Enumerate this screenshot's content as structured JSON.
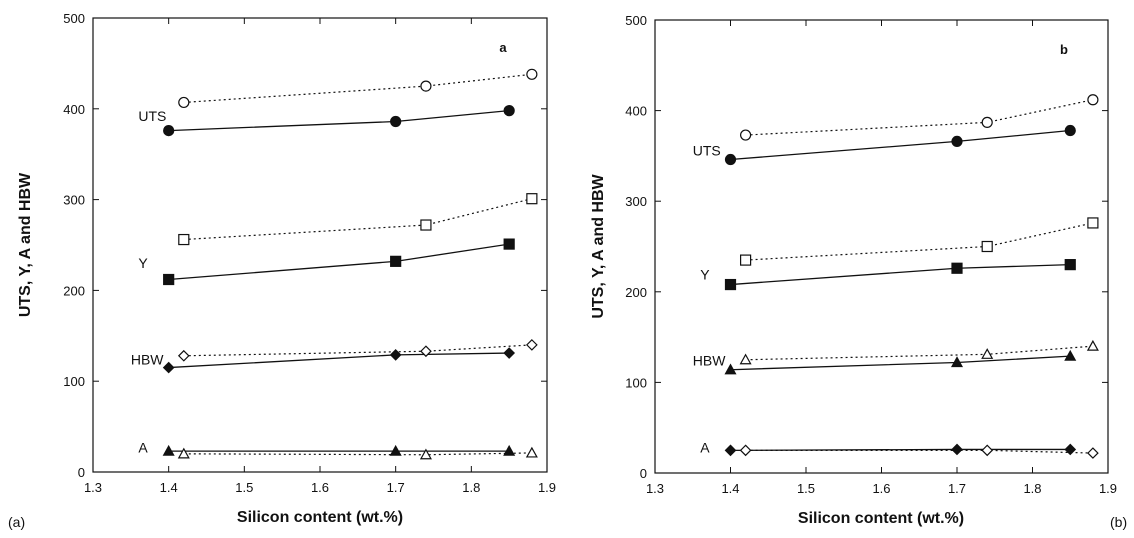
{
  "chart_data": [
    {
      "type": "line",
      "panel_label": "a",
      "caption": "(a)",
      "xlabel": "Silicon content (wt.%)",
      "ylabel": "UTS, Y, A and HBW",
      "xlim": [
        1.3,
        1.9
      ],
      "ylim": [
        0,
        500
      ],
      "xticks": [
        "1.3",
        "1.4",
        "1.5",
        "1.6",
        "1.7",
        "1.8",
        "1.9"
      ],
      "yticks": [
        "0",
        "100",
        "200",
        "300",
        "400",
        "500"
      ],
      "grid": false,
      "series": [
        {
          "group": "UTS",
          "style": "solid",
          "marker": "filled-circle",
          "x": [
            1.4,
            1.7,
            1.85
          ],
          "y": [
            376,
            386,
            398
          ]
        },
        {
          "group": "UTS",
          "style": "dotted",
          "marker": "open-circle",
          "x": [
            1.42,
            1.74,
            1.88
          ],
          "y": [
            407,
            425,
            438
          ]
        },
        {
          "group": "Y",
          "style": "solid",
          "marker": "filled-square",
          "x": [
            1.4,
            1.7,
            1.85
          ],
          "y": [
            212,
            232,
            251
          ]
        },
        {
          "group": "Y",
          "style": "dotted",
          "marker": "open-square",
          "x": [
            1.42,
            1.74,
            1.88
          ],
          "y": [
            256,
            272,
            301
          ]
        },
        {
          "group": "HBW",
          "style": "solid",
          "marker": "filled-diamond",
          "x": [
            1.4,
            1.7,
            1.85
          ],
          "y": [
            115,
            129,
            131
          ]
        },
        {
          "group": "HBW",
          "style": "dotted",
          "marker": "open-diamond",
          "x": [
            1.42,
            1.74,
            1.88
          ],
          "y": [
            128,
            133,
            140
          ]
        },
        {
          "group": "A",
          "style": "solid",
          "marker": "filled-triangle",
          "x": [
            1.4,
            1.7,
            1.85
          ],
          "y": [
            23,
            23,
            23
          ]
        },
        {
          "group": "A",
          "style": "dotted",
          "marker": "open-triangle",
          "x": [
            1.42,
            1.74,
            1.88
          ],
          "y": [
            20,
            19,
            21
          ]
        }
      ],
      "labels": [
        {
          "text": "UTS",
          "x": 1.36,
          "y": 392
        },
        {
          "text": "Y",
          "x": 1.36,
          "y": 230
        },
        {
          "text": "HBW",
          "x": 1.35,
          "y": 124
        },
        {
          "text": "A",
          "x": 1.36,
          "y": 27
        }
      ]
    },
    {
      "type": "line",
      "panel_label": "b",
      "caption": "(b)",
      "xlabel": "Silicon content (wt.%)",
      "ylabel": "UTS, Y, A and HBW",
      "xlim": [
        1.3,
        1.9
      ],
      "ylim": [
        0,
        500
      ],
      "xticks": [
        "1.3",
        "1.4",
        "1.5",
        "1.6",
        "1.7",
        "1.8",
        "1.9"
      ],
      "yticks": [
        "0",
        "100",
        "200",
        "300",
        "400",
        "500"
      ],
      "grid": false,
      "series": [
        {
          "group": "UTS",
          "style": "solid",
          "marker": "filled-circle",
          "x": [
            1.4,
            1.7,
            1.85
          ],
          "y": [
            346,
            366,
            378
          ]
        },
        {
          "group": "UTS",
          "style": "dotted",
          "marker": "open-circle",
          "x": [
            1.42,
            1.74,
            1.88
          ],
          "y": [
            373,
            387,
            412
          ]
        },
        {
          "group": "Y",
          "style": "solid",
          "marker": "filled-square",
          "x": [
            1.4,
            1.7,
            1.85
          ],
          "y": [
            208,
            226,
            230
          ]
        },
        {
          "group": "Y",
          "style": "dotted",
          "marker": "open-square",
          "x": [
            1.42,
            1.74,
            1.88
          ],
          "y": [
            235,
            250,
            276
          ]
        },
        {
          "group": "HBW",
          "style": "solid",
          "marker": "filled-triangle",
          "x": [
            1.4,
            1.7,
            1.85
          ],
          "y": [
            114,
            122,
            129
          ]
        },
        {
          "group": "HBW",
          "style": "dotted",
          "marker": "open-triangle",
          "x": [
            1.42,
            1.74,
            1.88
          ],
          "y": [
            125,
            131,
            140
          ]
        },
        {
          "group": "A",
          "style": "solid",
          "marker": "filled-diamond",
          "x": [
            1.4,
            1.7,
            1.85
          ],
          "y": [
            25,
            26,
            26
          ]
        },
        {
          "group": "A",
          "style": "dotted",
          "marker": "open-diamond",
          "x": [
            1.42,
            1.74,
            1.88
          ],
          "y": [
            25,
            25,
            22
          ]
        }
      ],
      "labels": [
        {
          "text": "UTS",
          "x": 1.35,
          "y": 356
        },
        {
          "text": "Y",
          "x": 1.36,
          "y": 219
        },
        {
          "text": "HBW",
          "x": 1.35,
          "y": 124
        },
        {
          "text": "A",
          "x": 1.36,
          "y": 28
        }
      ]
    }
  ]
}
